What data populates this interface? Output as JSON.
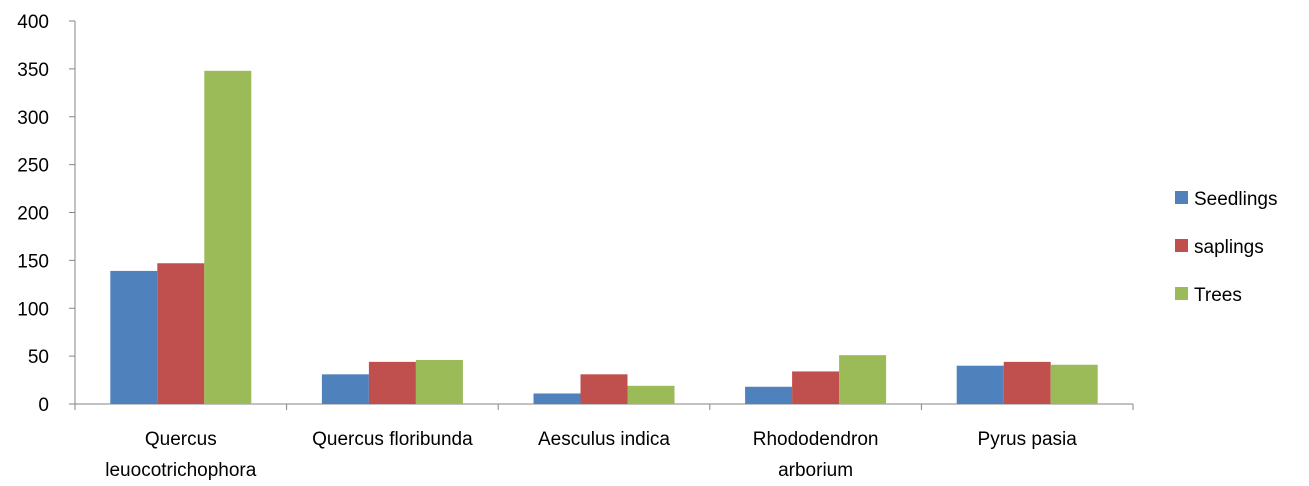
{
  "chart_data": {
    "type": "bar",
    "title": "",
    "xlabel": "",
    "ylabel": "",
    "ylim": [
      0,
      400
    ],
    "yticks": [
      0,
      50,
      100,
      150,
      200,
      250,
      300,
      350,
      400
    ],
    "grid": false,
    "legend_position": "right",
    "categories": [
      [
        "Quercus",
        "leuocotrichophora"
      ],
      [
        "Quercus floribunda"
      ],
      [
        "Aesculus indica"
      ],
      [
        "Rhododendron",
        "arborium"
      ],
      [
        "Pyrus pasia"
      ]
    ],
    "series": [
      {
        "name": "Seedlings",
        "color": "#4F81BD",
        "values": [
          139,
          31,
          11,
          18,
          40
        ]
      },
      {
        "name": "saplings",
        "color": "#C0504D",
        "values": [
          147,
          44,
          31,
          34,
          44
        ]
      },
      {
        "name": "Trees",
        "color": "#9BBB59",
        "values": [
          348,
          46,
          19,
          51,
          41
        ]
      }
    ]
  }
}
